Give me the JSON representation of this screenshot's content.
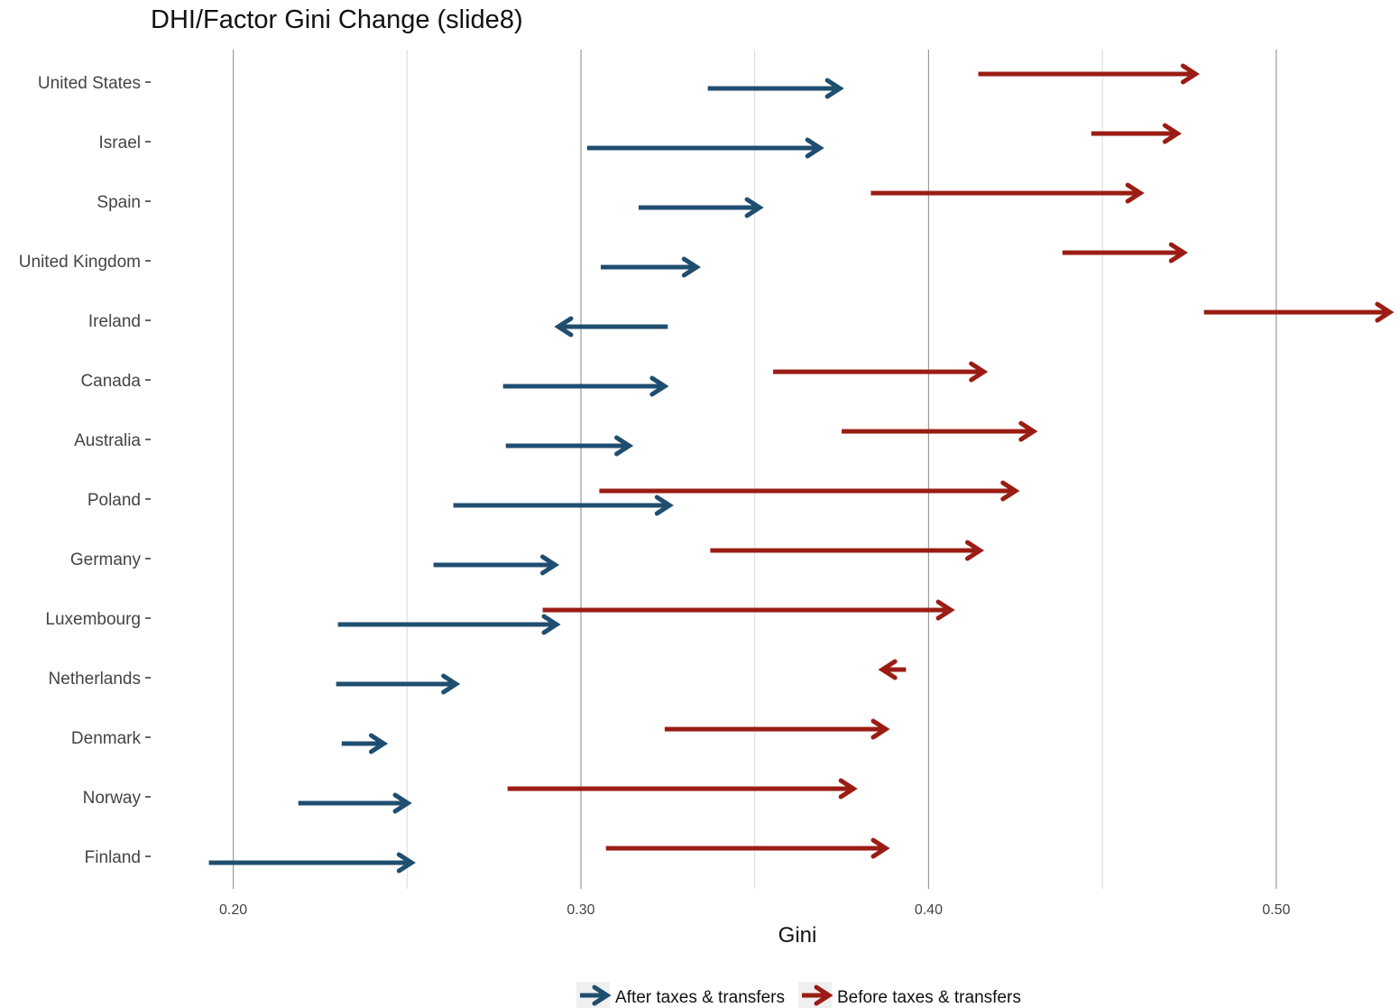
{
  "chart_data": {
    "type": "arrow",
    "title": "DHI/Factor Gini Change (slide8)",
    "xlabel": "Gini",
    "ylabel": "",
    "xlim": [
      0.1765,
      0.533
    ],
    "x_ticks": [
      "0.20",
      "0.30",
      "0.40",
      "0.50"
    ],
    "x_tick_values": [
      0.2,
      0.3,
      0.4,
      0.5
    ],
    "grid": true,
    "legend_position": "bottom",
    "categories": [
      "United States",
      "Israel",
      "Spain",
      "United Kingdom",
      "Ireland",
      "Canada",
      "Australia",
      "Poland",
      "Germany",
      "Luxembourg",
      "Netherlands",
      "Denmark",
      "Norway",
      "Finland"
    ],
    "series": [
      {
        "name": "After taxes & transfers",
        "color": "#1f4e70",
        "arrows": [
          {
            "from": 0.3365,
            "to": 0.3745
          },
          {
            "from": 0.3018,
            "to": 0.3688
          },
          {
            "from": 0.3166,
            "to": 0.3514
          },
          {
            "from": 0.3057,
            "to": 0.3333
          },
          {
            "from": 0.325,
            "to": 0.2935
          },
          {
            "from": 0.2776,
            "to": 0.3241
          },
          {
            "from": 0.2784,
            "to": 0.3139
          },
          {
            "from": 0.2633,
            "to": 0.3255
          },
          {
            "from": 0.2576,
            "to": 0.2926
          },
          {
            "from": 0.2301,
            "to": 0.293
          },
          {
            "from": 0.2296,
            "to": 0.2641
          },
          {
            "from": 0.2312,
            "to": 0.2433
          },
          {
            "from": 0.2187,
            "to": 0.2502
          },
          {
            "from": 0.193,
            "to": 0.2513
          }
        ]
      },
      {
        "name": "Before taxes & transfers",
        "color": "#9b1c14",
        "arrows": [
          {
            "from": 0.4143,
            "to": 0.4768
          },
          {
            "from": 0.4468,
            "to": 0.4716
          },
          {
            "from": 0.3834,
            "to": 0.4609
          },
          {
            "from": 0.4385,
            "to": 0.4734
          },
          {
            "from": 0.4792,
            "to": 0.5327
          },
          {
            "from": 0.3553,
            "to": 0.4159
          },
          {
            "from": 0.375,
            "to": 0.4302
          },
          {
            "from": 0.3053,
            "to": 0.425
          },
          {
            "from": 0.3372,
            "to": 0.4148
          },
          {
            "from": 0.289,
            "to": 0.4064
          },
          {
            "from": 0.3935,
            "to": 0.3867
          },
          {
            "from": 0.3241,
            "to": 0.3877
          },
          {
            "from": 0.2789,
            "to": 0.3784
          },
          {
            "from": 0.3072,
            "to": 0.3877
          }
        ]
      }
    ]
  }
}
